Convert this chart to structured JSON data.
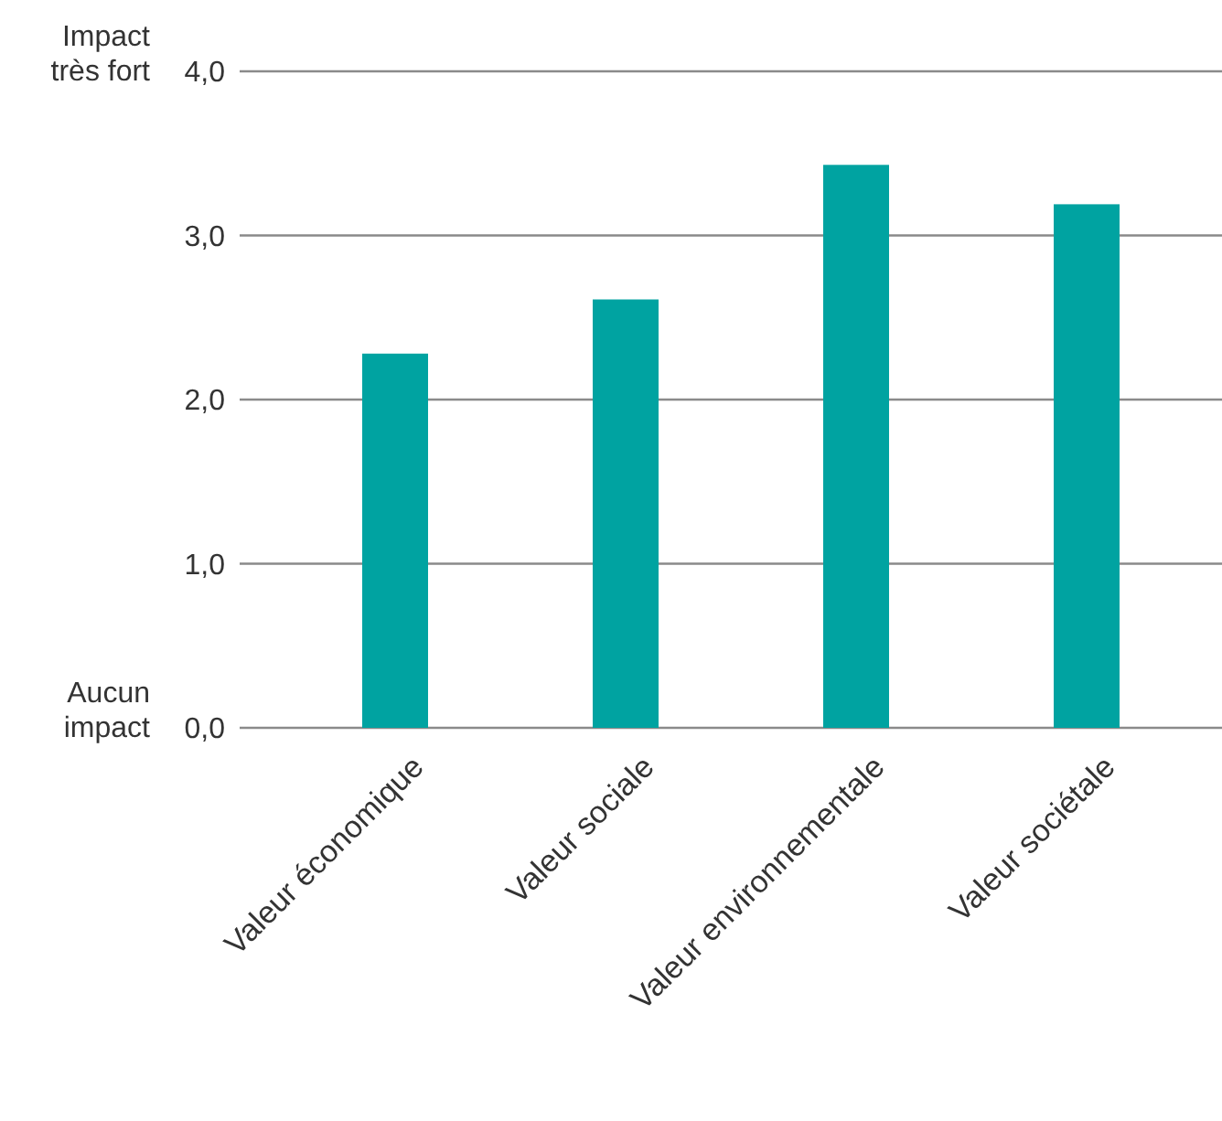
{
  "chart_data": {
    "type": "bar",
    "categories": [
      "Valeur économique",
      "Valeur sociale",
      "Valeur environnementale",
      "Valeur sociétale"
    ],
    "values": [
      2.28,
      2.61,
      3.43,
      3.19
    ],
    "color": "#00a3a1",
    "ylim": [
      0,
      4
    ],
    "yticks": [
      {
        "value": 0,
        "label": "0,0"
      },
      {
        "value": 1,
        "label": "1,0"
      },
      {
        "value": 2,
        "label": "2,0"
      },
      {
        "value": 3,
        "label": "3,0"
      },
      {
        "value": 4,
        "label": "4,0"
      }
    ],
    "grid": "y",
    "annotations": [
      "Impact\ntrès fort",
      "Aucun\nimpact"
    ]
  }
}
